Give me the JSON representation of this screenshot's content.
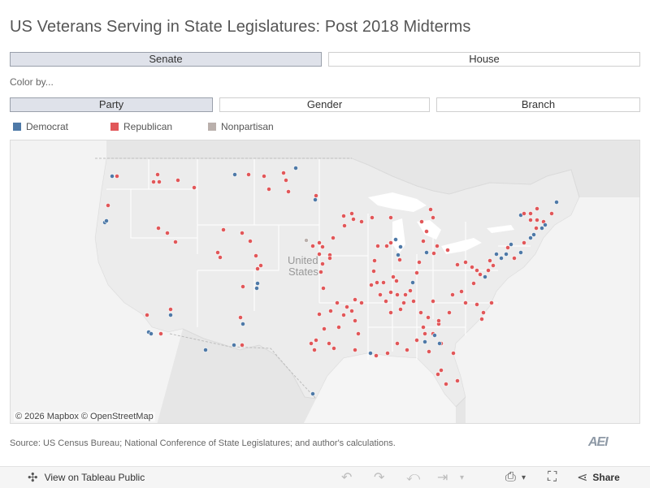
{
  "title": "US Veterans Serving in State Legislatures: Post 2018 Midterms",
  "chamber_tabs": [
    {
      "label": "Senate",
      "selected": true
    },
    {
      "label": "House",
      "selected": false
    }
  ],
  "color_by_label": "Color by...",
  "color_by_tabs": [
    {
      "label": "Party",
      "selected": true
    },
    {
      "label": "Gender",
      "selected": false
    },
    {
      "label": "Branch",
      "selected": false
    }
  ],
  "legend": [
    {
      "label": "Democrat",
      "color": "#4e79a7"
    },
    {
      "label": "Republican",
      "color": "#e15759"
    },
    {
      "label": "Nonpartisan",
      "color": "#bab0ac"
    }
  ],
  "map": {
    "country_label_1": "United",
    "country_label_2": "States",
    "attribution": "© 2026 Mapbox  © OpenStreetMap",
    "land_color": "#ececec",
    "water_color": "#ffffff",
    "border_color": "#ffffff"
  },
  "source": "Source: US Census Bureau; National Conference of State Legislatures; and author's calculations.",
  "logo": "AEI",
  "toolbar": {
    "view_label": "View on Tableau Public",
    "share_label": "Share"
  }
}
